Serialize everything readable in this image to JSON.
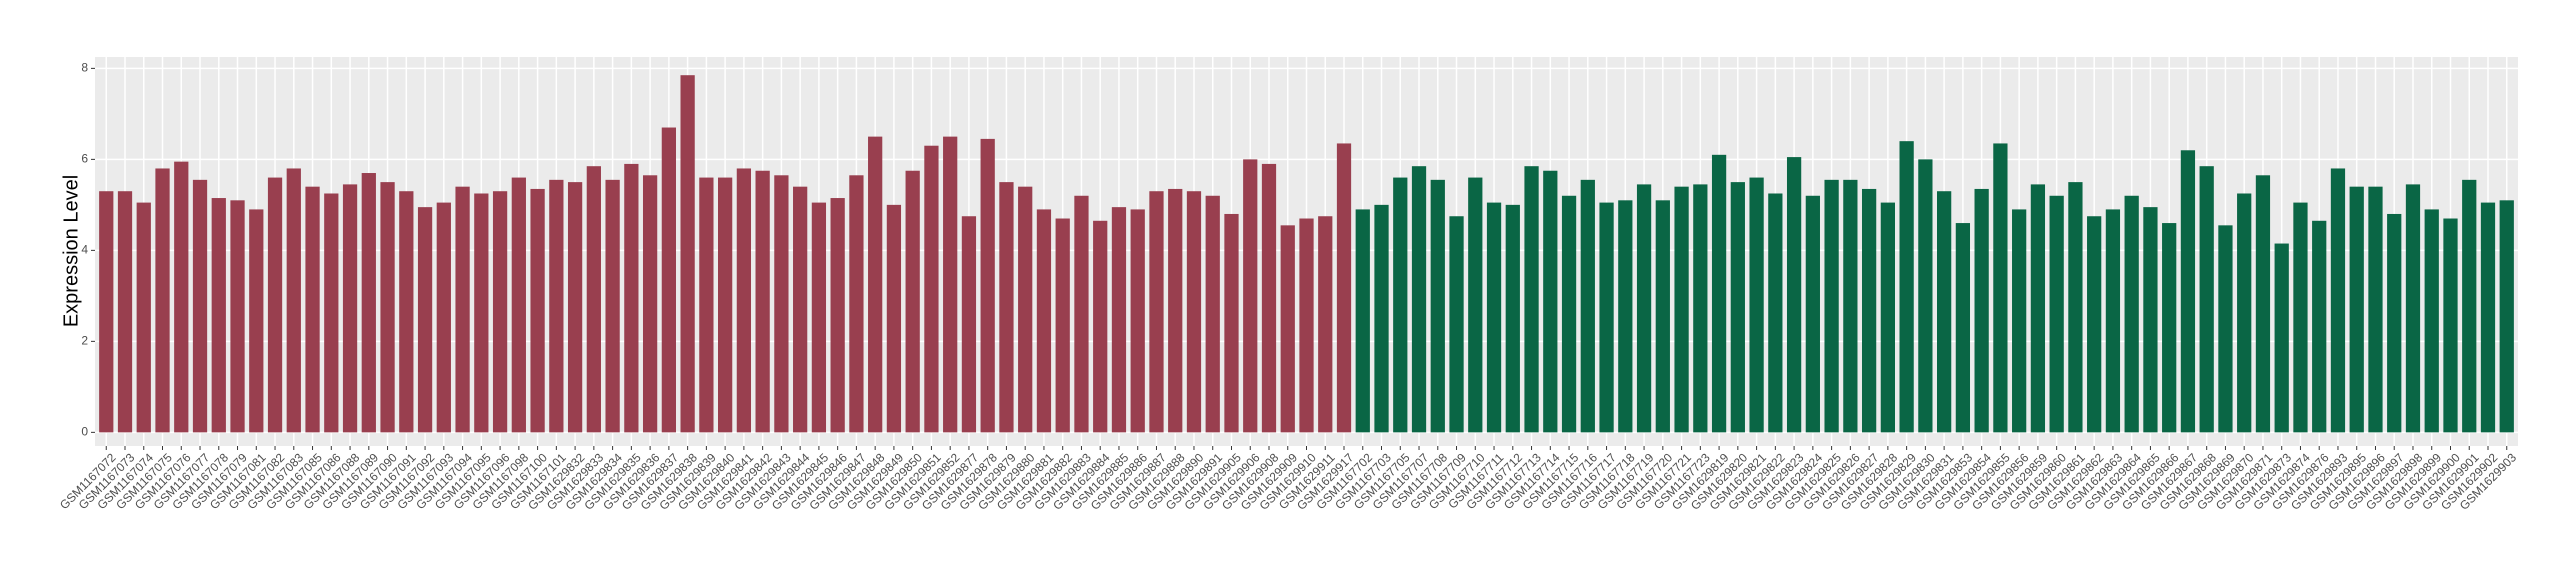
{
  "chart_data": {
    "type": "bar",
    "y_label": "Expression Level",
    "categories": [
      "GSM1167072",
      "GSM1167073",
      "GSM1167074",
      "GSM1167075",
      "GSM1167076",
      "GSM1167077",
      "GSM1167078",
      "GSM1167079",
      "GSM1167081",
      "GSM1167082",
      "GSM1167083",
      "GSM1167085",
      "GSM1167086",
      "GSM1167088",
      "GSM1167089",
      "GSM1167090",
      "GSM1167091",
      "GSM1167092",
      "GSM1167093",
      "GSM1167094",
      "GSM1167095",
      "GSM1167096",
      "GSM1167098",
      "GSM1167100",
      "GSM1167101",
      "GSM1629832",
      "GSM1629833",
      "GSM1629834",
      "GSM1629835",
      "GSM1629836",
      "GSM1629837",
      "GSM1629838",
      "GSM1629839",
      "GSM1629840",
      "GSM1629841",
      "GSM1629842",
      "GSM1629843",
      "GSM1629844",
      "GSM1629845",
      "GSM1629846",
      "GSM1629847",
      "GSM1629848",
      "GSM1629849",
      "GSM1629850",
      "GSM1629851",
      "GSM1629852",
      "GSM1629877",
      "GSM1629878",
      "GSM1629879",
      "GSM1629880",
      "GSM1629881",
      "GSM1629882",
      "GSM1629883",
      "GSM1629884",
      "GSM1629885",
      "GSM1629886",
      "GSM1629887",
      "GSM1629888",
      "GSM1629890",
      "GSM1629891",
      "GSM1629905",
      "GSM1629906",
      "GSM1629908",
      "GSM1629909",
      "GSM1629910",
      "GSM1629911",
      "GSM1629917",
      "GSM1167702",
      "GSM1167703",
      "GSM1167705",
      "GSM1167707",
      "GSM1167708",
      "GSM1167709",
      "GSM1167710",
      "GSM1167711",
      "GSM1167712",
      "GSM1167713",
      "GSM1167714",
      "GSM1167715",
      "GSM1167716",
      "GSM1167717",
      "GSM1167718",
      "GSM1167719",
      "GSM1167720",
      "GSM1167721",
      "GSM1167723",
      "GSM1629819",
      "GSM1629820",
      "GSM1629821",
      "GSM1629822",
      "GSM1629823",
      "GSM1629824",
      "GSM1629825",
      "GSM1629826",
      "GSM1629827",
      "GSM1629828",
      "GSM1629829",
      "GSM1629830",
      "GSM1629831",
      "GSM1629853",
      "GSM1629854",
      "GSM1629855",
      "GSM1629856",
      "GSM1629859",
      "GSM1629860",
      "GSM1629861",
      "GSM1629862",
      "GSM1629863",
      "GSM1629864",
      "GSM1629865",
      "GSM1629866",
      "GSM1629867",
      "GSM1629868",
      "GSM1629869",
      "GSM1629870",
      "GSM1629871",
      "GSM1629873",
      "GSM1629874",
      "GSM1629876",
      "GSM1629893",
      "GSM1629895",
      "GSM1629896",
      "GSM1629897",
      "GSM1629898",
      "GSM1629899",
      "GSM1629900",
      "GSM1629901",
      "GSM1629902",
      "GSM1629903"
    ],
    "values": [
      5.3,
      5.3,
      5.05,
      5.8,
      5.95,
      5.55,
      5.15,
      5.1,
      4.9,
      5.6,
      5.8,
      5.4,
      5.25,
      5.45,
      5.7,
      5.5,
      5.3,
      4.95,
      5.05,
      5.4,
      5.25,
      5.3,
      5.6,
      5.35,
      5.55,
      5.5,
      5.85,
      5.55,
      5.9,
      5.65,
      6.7,
      7.85,
      5.6,
      5.6,
      5.8,
      5.75,
      5.65,
      5.4,
      5.05,
      5.15,
      5.65,
      6.5,
      5.0,
      5.75,
      6.3,
      6.5,
      4.75,
      6.45,
      5.5,
      5.4,
      4.9,
      4.7,
      5.2,
      4.65,
      4.95,
      4.9,
      5.3,
      5.35,
      5.3,
      5.2,
      4.8,
      6.0,
      5.9,
      4.55,
      4.7,
      4.75,
      6.35,
      4.9,
      5.0,
      5.6,
      5.85,
      5.55,
      4.75,
      5.6,
      5.05,
      5.0,
      5.85,
      5.75,
      5.2,
      5.55,
      5.05,
      5.1,
      5.45,
      5.1,
      5.4,
      5.45,
      6.1,
      5.5,
      5.6,
      5.25,
      6.05,
      5.2,
      5.55,
      5.55,
      5.35,
      5.05,
      6.4,
      6.0,
      5.3,
      4.6,
      5.35,
      6.35,
      4.9,
      5.45,
      5.2,
      5.5,
      4.75,
      4.9,
      5.2,
      4.95,
      4.6,
      6.2,
      5.85,
      4.55,
      5.25,
      5.65,
      4.15,
      5.05,
      4.65,
      5.8,
      5.4,
      5.4,
      4.8,
      5.45,
      4.9,
      4.7,
      5.55,
      5.05,
      5.1
    ],
    "colors": [
      "#993f4f",
      "#993f4f",
      "#993f4f",
      "#993f4f",
      "#993f4f",
      "#993f4f",
      "#993f4f",
      "#993f4f",
      "#993f4f",
      "#993f4f",
      "#993f4f",
      "#993f4f",
      "#993f4f",
      "#993f4f",
      "#993f4f",
      "#993f4f",
      "#993f4f",
      "#993f4f",
      "#993f4f",
      "#993f4f",
      "#993f4f",
      "#993f4f",
      "#993f4f",
      "#993f4f",
      "#993f4f",
      "#993f4f",
      "#993f4f",
      "#993f4f",
      "#993f4f",
      "#993f4f",
      "#993f4f",
      "#993f4f",
      "#993f4f",
      "#993f4f",
      "#993f4f",
      "#993f4f",
      "#993f4f",
      "#993f4f",
      "#993f4f",
      "#993f4f",
      "#993f4f",
      "#993f4f",
      "#993f4f",
      "#993f4f",
      "#993f4f",
      "#993f4f",
      "#993f4f",
      "#993f4f",
      "#993f4f",
      "#993f4f",
      "#993f4f",
      "#993f4f",
      "#993f4f",
      "#993f4f",
      "#993f4f",
      "#993f4f",
      "#993f4f",
      "#993f4f",
      "#993f4f",
      "#993f4f",
      "#993f4f",
      "#993f4f",
      "#993f4f",
      "#993f4f",
      "#993f4f",
      "#993f4f",
      "#993f4f",
      "#0a6645",
      "#0a6645",
      "#0a6645",
      "#0a6645",
      "#0a6645",
      "#0a6645",
      "#0a6645",
      "#0a6645",
      "#0a6645",
      "#0a6645",
      "#0a6645",
      "#0a6645",
      "#0a6645",
      "#0a6645",
      "#0a6645",
      "#0a6645",
      "#0a6645",
      "#0a6645",
      "#0a6645",
      "#0a6645",
      "#0a6645",
      "#0a6645",
      "#0a6645",
      "#0a6645",
      "#0a6645",
      "#0a6645",
      "#0a6645",
      "#0a6645",
      "#0a6645",
      "#0a6645",
      "#0a6645",
      "#0a6645",
      "#0a6645",
      "#0a6645",
      "#0a6645",
      "#0a6645",
      "#0a6645",
      "#0a6645",
      "#0a6645",
      "#0a6645",
      "#0a6645",
      "#0a6645",
      "#0a6645",
      "#0a6645",
      "#0a6645",
      "#0a6645",
      "#0a6645",
      "#0a6645",
      "#0a6645",
      "#0a6645",
      "#0a6645",
      "#0a6645",
      "#0a6645",
      "#0a6645",
      "#0a6645",
      "#0a6645",
      "#0a6645",
      "#0a6645",
      "#0a6645",
      "#0a6645",
      "#0a6645",
      "#0a6645"
    ],
    "ylim": [
      -0.3,
      8.25
    ],
    "yticks": [
      0,
      2,
      4,
      6,
      8
    ],
    "grid": true
  }
}
